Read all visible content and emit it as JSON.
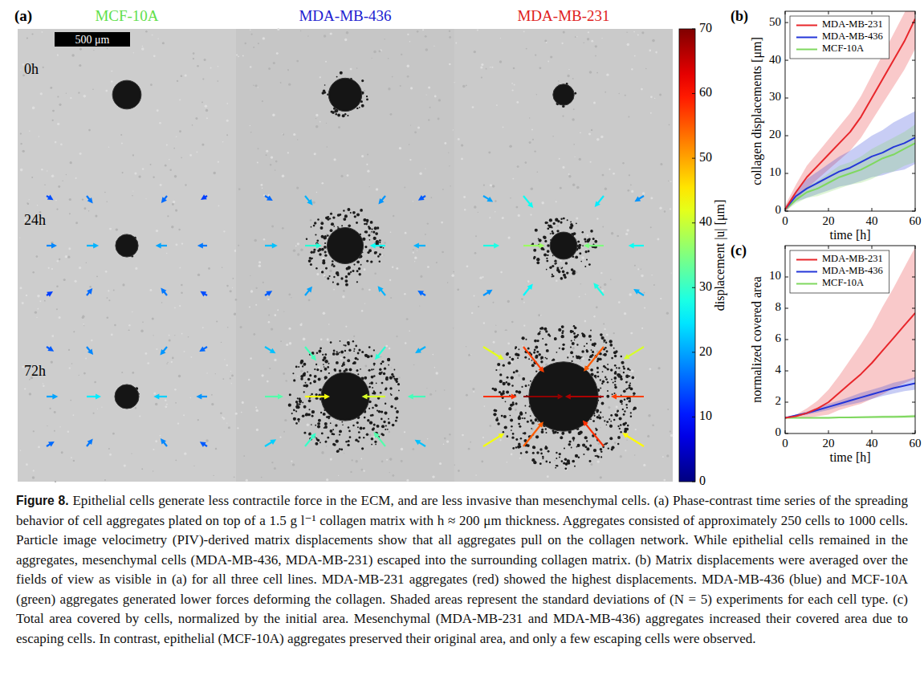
{
  "panel_a": {
    "panel_label": "(a)",
    "columns": [
      {
        "name": "MCF-10A",
        "color": "#5fe04a"
      },
      {
        "name": "MDA-MB-436",
        "color": "#2020d0"
      },
      {
        "name": "MDA-MB-231",
        "color": "#e02020"
      }
    ],
    "scale_bar": {
      "label": "500 μm",
      "length_um": 500
    },
    "rows": [
      {
        "label": "0h",
        "images": [
          {
            "core_radius_um": 95,
            "spread_radius_um": 95
          },
          {
            "core_radius_um": 110,
            "spread_radius_um": 150
          },
          {
            "core_radius_um": 70,
            "spread_radius_um": 80
          }
        ]
      },
      {
        "label": "24h",
        "images": [
          {
            "core_radius_um": 75,
            "spread_radius_um": 80,
            "arrows": [
              14,
              17,
              16,
              13,
              18,
              21,
              20,
              17,
              13,
              16,
              17,
              14
            ]
          },
          {
            "core_radius_um": 120,
            "spread_radius_um": 260,
            "arrows": [
              16,
              21,
              19,
              15,
              22,
              29,
              27,
              21,
              15,
              20,
              21,
              16
            ]
          },
          {
            "core_radius_um": 90,
            "spread_radius_um": 220,
            "arrows": [
              20,
              27,
              25,
              19,
              28,
              37,
              35,
              27,
              19,
              26,
              28,
              21
            ]
          }
        ]
      },
      {
        "label": "72h",
        "images": [
          {
            "core_radius_um": 80,
            "spread_radius_um": 85,
            "arrows": [
              15,
              18,
              19,
              16,
              20,
              25,
              23,
              19,
              16,
              17,
              18,
              15
            ]
          },
          {
            "core_radius_um": 160,
            "spread_radius_um": 380,
            "arrows": [
              22,
              31,
              29,
              21,
              32,
              43,
              41,
              31,
              23,
              30,
              32,
              22
            ]
          },
          {
            "core_radius_um": 230,
            "spread_radius_um": 480,
            "arrows": [
              42,
              57,
              55,
              41,
              58,
              69,
              67,
              57,
              43,
              55,
              58,
              44
            ]
          }
        ]
      }
    ],
    "colorbar": {
      "label": "displacement |u| [μm]",
      "range": [
        0,
        70
      ],
      "ticks": [
        0,
        10,
        20,
        30,
        40,
        50,
        60,
        70
      ]
    }
  },
  "chart_data": [
    {
      "type": "line",
      "panel_label": "(b)",
      "x_label": "time [h]",
      "y_label": "collagen displacements [μm]",
      "x": [
        0,
        5,
        10,
        15,
        20,
        25,
        30,
        35,
        40,
        45,
        50,
        55,
        60
      ],
      "xlim": [
        0,
        60
      ],
      "xticks": [
        0,
        20,
        40,
        60
      ],
      "ylim": [
        0,
        53
      ],
      "yticks": [
        0,
        10,
        20,
        30,
        40,
        50
      ],
      "grid": false,
      "legend": "top-left",
      "series": [
        {
          "name": "MDA-MB-231",
          "color": "#e8262b",
          "values": [
            0.5,
            5,
            9,
            12,
            15,
            18,
            21,
            25,
            30,
            35,
            40,
            45,
            51
          ],
          "sd": [
            1,
            2,
            3,
            3.5,
            4,
            4.5,
            5,
            5.5,
            6,
            6.5,
            7,
            7.5,
            8
          ]
        },
        {
          "name": "MDA-MB-436",
          "color": "#2436d9",
          "values": [
            0.5,
            4,
            6,
            7.5,
            9,
            10.5,
            11.5,
            13,
            14.5,
            15.5,
            17,
            18,
            19.5
          ],
          "sd": [
            0.5,
            1.5,
            2.5,
            3,
            3.5,
            4,
            4.5,
            5,
            5.5,
            6,
            6.5,
            7,
            7
          ]
        },
        {
          "name": "MCF-10A",
          "color": "#7fd85f",
          "values": [
            0.5,
            3,
            5,
            6,
            7.5,
            9,
            10,
            11,
            12.5,
            14,
            15,
            16.5,
            18
          ],
          "sd": [
            0.5,
            1,
            1.5,
            2,
            2.5,
            3,
            3,
            3.5,
            4,
            4,
            4.5,
            4.5,
            5
          ]
        }
      ]
    },
    {
      "type": "line",
      "panel_label": "(c)",
      "x_label": "time [h]",
      "y_label": "normalized covered  area",
      "x": [
        0,
        5,
        10,
        15,
        20,
        25,
        30,
        35,
        40,
        45,
        50,
        55,
        60
      ],
      "xlim": [
        0,
        60
      ],
      "xticks": [
        0,
        20,
        40,
        60
      ],
      "ylim": [
        0,
        12
      ],
      "yticks": [
        0,
        2,
        4,
        6,
        8,
        10
      ],
      "grid": false,
      "legend": "top-left",
      "series": [
        {
          "name": "MDA-MB-231",
          "color": "#e8262b",
          "values": [
            1,
            1.1,
            1.3,
            1.6,
            2,
            2.6,
            3.2,
            3.8,
            4.5,
            5.3,
            6.1,
            6.9,
            7.7
          ],
          "sd": [
            0,
            0.1,
            0.3,
            0.5,
            0.8,
            1.1,
            1.5,
            1.9,
            2.3,
            2.8,
            3.2,
            3.7,
            4.2
          ]
        },
        {
          "name": "MDA-MB-436",
          "color": "#2436d9",
          "values": [
            1,
            1.15,
            1.3,
            1.5,
            1.7,
            1.9,
            2.1,
            2.3,
            2.5,
            2.7,
            2.9,
            3.05,
            3.2
          ],
          "sd": [
            0,
            0.05,
            0.1,
            0.15,
            0.2,
            0.2,
            0.25,
            0.3,
            0.3,
            0.3,
            0.35,
            0.35,
            0.4
          ]
        },
        {
          "name": "MCF-10A",
          "color": "#7fd85f",
          "values": [
            1,
            1,
            1,
            1,
            1,
            1.02,
            1.03,
            1.04,
            1.05,
            1.06,
            1.07,
            1.08,
            1.1
          ],
          "sd": [
            0,
            0.02,
            0.03,
            0.04,
            0.05,
            0.05,
            0.06,
            0.06,
            0.07,
            0.08,
            0.08,
            0.09,
            0.1
          ]
        }
      ]
    }
  ],
  "caption": {
    "label": "Figure 8.",
    "text": "Epithelial cells generate less contractile force in the ECM, and are less invasive than mesenchymal cells. (a) Phase-contrast time series of the spreading behavior of cell aggregates plated on top of a 1.5 g l⁻¹ collagen matrix with h ≈ 200 μm thickness. Aggregates consisted of approximately 250 cells to 1000 cells. Particle image velocimetry (PIV)-derived matrix displacements show that all aggregates pull on the collagen network. While epithelial cells remained in the aggregates, mesenchymal cells (MDA-MB-436, MDA-MB-231) escaped into the surrounding collagen matrix. (b) Matrix displacements were averaged over the fields of view as visible in (a) for all three cell lines. MDA-MB-231 aggregates (red) showed the highest displacements. MDA-MB-436 (blue) and MCF-10A (green) aggregates generated lower forces deforming the collagen. Shaded areas represent the standard deviations of (N = 5) experiments for each cell type. (c) Total area covered by cells, normalized by the initial area. Mesenchymal (MDA-MB-231 and MDA-MB-436) aggregates increased their covered area due to escaping cells. In contrast, epithelial (MCF-10A) aggregates preserved their original area, and only a few escaping cells were observed."
  }
}
